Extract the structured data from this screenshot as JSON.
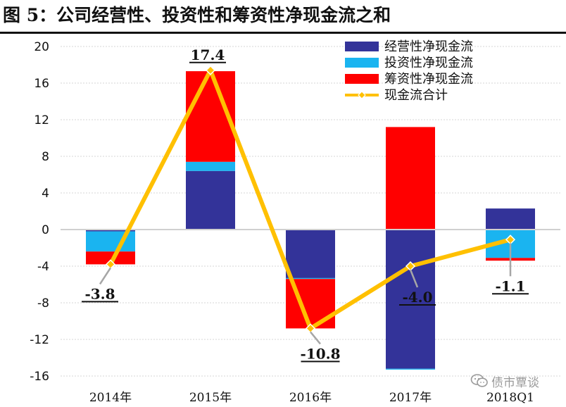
{
  "title": "图 5：公司经营性、投资性和筹资性净现金流之和",
  "watermark": "债市覃谈",
  "chart_data": {
    "type": "bar",
    "stacked": true,
    "categories": [
      "2014年",
      "2015年",
      "2016年",
      "2017年",
      "2018Q1"
    ],
    "ylim": [
      -16,
      20
    ],
    "yticks": [
      20,
      16,
      12,
      8,
      4,
      0,
      -4,
      -8,
      -12,
      -16
    ],
    "grid": true,
    "legend_position": "top-right",
    "series": [
      {
        "name": "经营性净现金流",
        "kind": "bar",
        "color": "#333399",
        "values": [
          -0.2,
          6.4,
          -5.3,
          -15.2,
          2.3
        ]
      },
      {
        "name": "投资性净现金流",
        "kind": "bar",
        "color": "#1ab4f0",
        "values": [
          -2.2,
          1.0,
          -0.1,
          -0.1,
          -3.1
        ]
      },
      {
        "name": "筹资性净现金流",
        "kind": "bar",
        "color": "#ff0000",
        "values": [
          -1.4,
          9.9,
          -5.4,
          11.2,
          -0.3
        ]
      },
      {
        "name": "现金流合计",
        "kind": "line",
        "color": "#ffc000",
        "values": [
          -3.8,
          17.4,
          -10.8,
          -4.0,
          -1.1
        ]
      }
    ],
    "data_labels": [
      "-3.8",
      "17.4",
      "-10.8",
      "-4.0",
      "-1.1"
    ]
  }
}
